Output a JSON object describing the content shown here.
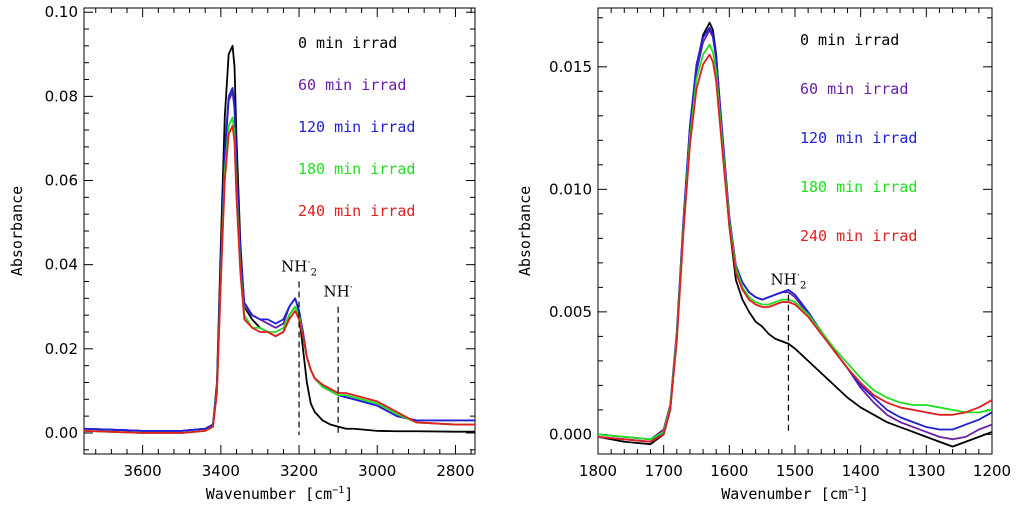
{
  "chart_data": [
    {
      "type": "line",
      "title": "",
      "xlabel": "Wavenumber [cm",
      "xlabel_sup": "−1",
      "xlabel_suffix": "]",
      "ylabel": "Absorbance",
      "xlim": [
        3750,
        2750
      ],
      "ylim": [
        -0.005,
        0.101
      ],
      "x_reversed": true,
      "grid": false,
      "legend_position": "top-right",
      "x_ticks": [
        {
          "value": 3600,
          "label": "3600"
        },
        {
          "value": 3400,
          "label": "3400"
        },
        {
          "value": 3200,
          "label": "3200"
        },
        {
          "value": 3000,
          "label": "3000"
        },
        {
          "value": 2800,
          "label": "2800"
        }
      ],
      "y_ticks": [
        {
          "value": 0.0,
          "label": "0.00"
        },
        {
          "value": 0.02,
          "label": "0.02"
        },
        {
          "value": 0.04,
          "label": "0.04"
        },
        {
          "value": 0.06,
          "label": "0.06"
        },
        {
          "value": 0.08,
          "label": "0.08"
        },
        {
          "value": 0.1,
          "label": "0.10"
        }
      ],
      "series": [
        {
          "name": "0 min irrad",
          "color": "#000000",
          "x": [
            3750,
            3600,
            3500,
            3440,
            3420,
            3410,
            3400,
            3390,
            3380,
            3370,
            3365,
            3360,
            3350,
            3340,
            3320,
            3300,
            3280,
            3260,
            3240,
            3225,
            3210,
            3200,
            3190,
            3180,
            3170,
            3160,
            3140,
            3120,
            3100,
            3080,
            3060,
            3000,
            2950,
            2900,
            2800,
            2750
          ],
          "values": [
            0.001,
            0.0005,
            0.0005,
            0.001,
            0.002,
            0.012,
            0.045,
            0.075,
            0.09,
            0.092,
            0.087,
            0.07,
            0.045,
            0.03,
            0.027,
            0.025,
            0.024,
            0.023,
            0.024,
            0.028,
            0.03,
            0.028,
            0.02,
            0.012,
            0.007,
            0.005,
            0.003,
            0.002,
            0.0015,
            0.001,
            0.001,
            0.0005,
            0.0004,
            0.0004,
            0.0003,
            0.0003
          ]
        },
        {
          "name": "60 min irrad",
          "color": "#6a1fa8",
          "x": [
            3750,
            3600,
            3500,
            3440,
            3420,
            3410,
            3400,
            3390,
            3380,
            3370,
            3365,
            3360,
            3350,
            3340,
            3320,
            3300,
            3280,
            3260,
            3240,
            3225,
            3210,
            3200,
            3190,
            3180,
            3170,
            3160,
            3140,
            3120,
            3100,
            3080,
            3060,
            3000,
            2950,
            2900,
            2800,
            2750
          ],
          "values": [
            0.001,
            0.0005,
            0.0005,
            0.001,
            0.002,
            0.011,
            0.04,
            0.066,
            0.079,
            0.081,
            0.077,
            0.063,
            0.042,
            0.03,
            0.028,
            0.027,
            0.026,
            0.025,
            0.026,
            0.03,
            0.032,
            0.029,
            0.024,
            0.018,
            0.015,
            0.013,
            0.011,
            0.01,
            0.009,
            0.0085,
            0.008,
            0.0065,
            0.004,
            0.003,
            0.003,
            0.003
          ]
        },
        {
          "name": "120 min irrad",
          "color": "#1f1fd8",
          "x": [
            3750,
            3600,
            3500,
            3440,
            3420,
            3410,
            3400,
            3390,
            3380,
            3370,
            3365,
            3360,
            3350,
            3340,
            3320,
            3300,
            3280,
            3260,
            3240,
            3225,
            3210,
            3200,
            3190,
            3180,
            3170,
            3160,
            3140,
            3120,
            3100,
            3080,
            3060,
            3000,
            2950,
            2900,
            2800,
            2750
          ],
          "values": [
            0.001,
            0.0005,
            0.0005,
            0.001,
            0.002,
            0.011,
            0.04,
            0.067,
            0.08,
            0.082,
            0.078,
            0.064,
            0.043,
            0.031,
            0.028,
            0.027,
            0.027,
            0.026,
            0.027,
            0.03,
            0.032,
            0.029,
            0.024,
            0.018,
            0.015,
            0.013,
            0.011,
            0.01,
            0.009,
            0.0085,
            0.008,
            0.0065,
            0.004,
            0.003,
            0.003,
            0.003
          ]
        },
        {
          "name": "180 min irrad",
          "color": "#1fe01f",
          "x": [
            3750,
            3600,
            3500,
            3440,
            3420,
            3410,
            3400,
            3390,
            3380,
            3370,
            3365,
            3360,
            3350,
            3340,
            3320,
            3300,
            3280,
            3260,
            3240,
            3225,
            3210,
            3200,
            3190,
            3180,
            3170,
            3160,
            3140,
            3120,
            3100,
            3080,
            3060,
            3000,
            2950,
            2900,
            2800,
            2750
          ],
          "values": [
            0.0005,
            0.0,
            0.0,
            0.0005,
            0.0015,
            0.01,
            0.037,
            0.062,
            0.073,
            0.075,
            0.071,
            0.058,
            0.039,
            0.028,
            0.025,
            0.025,
            0.024,
            0.024,
            0.025,
            0.028,
            0.03,
            0.028,
            0.023,
            0.018,
            0.015,
            0.013,
            0.011,
            0.01,
            0.009,
            0.009,
            0.0085,
            0.007,
            0.0045,
            0.0025,
            0.002,
            0.002
          ]
        },
        {
          "name": "240 min irrad",
          "color": "#e01f1f",
          "x": [
            3750,
            3600,
            3500,
            3440,
            3420,
            3410,
            3400,
            3390,
            3380,
            3370,
            3365,
            3360,
            3350,
            3340,
            3320,
            3300,
            3280,
            3260,
            3240,
            3225,
            3210,
            3200,
            3190,
            3180,
            3170,
            3160,
            3140,
            3120,
            3100,
            3080,
            3060,
            3000,
            2950,
            2900,
            2800,
            2750
          ],
          "values": [
            0.0005,
            0.0,
            0.0,
            0.0005,
            0.0015,
            0.0095,
            0.036,
            0.06,
            0.071,
            0.073,
            0.069,
            0.056,
            0.038,
            0.027,
            0.025,
            0.024,
            0.024,
            0.023,
            0.024,
            0.027,
            0.029,
            0.027,
            0.023,
            0.018,
            0.015,
            0.013,
            0.0115,
            0.0105,
            0.0095,
            0.0095,
            0.009,
            0.0075,
            0.005,
            0.0025,
            0.002,
            0.002
          ]
        }
      ],
      "annotations": [
        {
          "text": "NH",
          "sub": "2",
          "sup": "·",
          "x": 3200,
          "line_from": 0.036,
          "line_to": -0.0005
        },
        {
          "text": "NH",
          "sub": "",
          "sup": "·",
          "x": 3100,
          "line_from": 0.03,
          "line_to": -0.0005
        }
      ]
    },
    {
      "type": "line",
      "title": "",
      "xlabel": "Wavenumber [cm",
      "xlabel_sup": "−1",
      "xlabel_suffix": "]",
      "ylabel": "Absorbance",
      "xlim": [
        1800,
        1200
      ],
      "ylim": [
        -0.0008,
        0.0174
      ],
      "x_reversed": true,
      "grid": false,
      "legend_position": "top-right",
      "x_ticks": [
        {
          "value": 1800,
          "label": "1800"
        },
        {
          "value": 1700,
          "label": "1700"
        },
        {
          "value": 1600,
          "label": "1600"
        },
        {
          "value": 1500,
          "label": "1500"
        },
        {
          "value": 1400,
          "label": "1400"
        },
        {
          "value": 1300,
          "label": "1300"
        },
        {
          "value": 1200,
          "label": "1200"
        }
      ],
      "y_ticks": [
        {
          "value": 0.0,
          "label": "0.000"
        },
        {
          "value": 0.005,
          "label": "0.005"
        },
        {
          "value": 0.01,
          "label": "0.010"
        },
        {
          "value": 0.015,
          "label": "0.015"
        }
      ],
      "series": [
        {
          "name": "0 min irrad",
          "color": "#000000",
          "x": [
            1800,
            1760,
            1720,
            1700,
            1690,
            1680,
            1670,
            1660,
            1650,
            1640,
            1630,
            1625,
            1620,
            1610,
            1600,
            1590,
            1580,
            1570,
            1560,
            1550,
            1540,
            1530,
            1520,
            1510,
            1500,
            1480,
            1460,
            1440,
            1420,
            1400,
            1380,
            1360,
            1340,
            1320,
            1300,
            1280,
            1260,
            1240,
            1220,
            1200
          ],
          "values": [
            -0.0001,
            -0.0003,
            -0.0004,
            0.0,
            0.001,
            0.004,
            0.0085,
            0.0125,
            0.015,
            0.0163,
            0.0168,
            0.0165,
            0.0155,
            0.0118,
            0.0085,
            0.0063,
            0.0055,
            0.005,
            0.0046,
            0.0044,
            0.0041,
            0.0039,
            0.0038,
            0.0037,
            0.0035,
            0.003,
            0.0025,
            0.002,
            0.0015,
            0.0011,
            0.0008,
            0.0005,
            0.0003,
            0.0001,
            -0.0001,
            -0.0003,
            -0.0005,
            -0.0003,
            -0.0001,
            0.0001
          ]
        },
        {
          "name": "60 min irrad",
          "color": "#6a1fa8",
          "x": [
            1800,
            1760,
            1720,
            1700,
            1690,
            1680,
            1670,
            1660,
            1650,
            1640,
            1630,
            1625,
            1620,
            1610,
            1600,
            1590,
            1580,
            1570,
            1560,
            1550,
            1540,
            1530,
            1520,
            1510,
            1500,
            1480,
            1460,
            1440,
            1420,
            1400,
            1380,
            1360,
            1340,
            1320,
            1300,
            1280,
            1260,
            1240,
            1220,
            1200
          ],
          "values": [
            0.0,
            -0.0001,
            -0.0002,
            0.0002,
            0.0012,
            0.0042,
            0.0087,
            0.0125,
            0.0148,
            0.016,
            0.0165,
            0.0162,
            0.0153,
            0.012,
            0.0088,
            0.0068,
            0.0062,
            0.0058,
            0.0056,
            0.0055,
            0.0056,
            0.0057,
            0.0058,
            0.0058,
            0.0056,
            0.0049,
            0.0042,
            0.0034,
            0.0027,
            0.0019,
            0.0013,
            0.0008,
            0.0005,
            0.0003,
            0.0001,
            -0.0001,
            -0.0002,
            -0.0001,
            0.0002,
            0.0004
          ]
        },
        {
          "name": "120 min irrad",
          "color": "#1f1fd8",
          "x": [
            1800,
            1760,
            1720,
            1700,
            1690,
            1680,
            1670,
            1660,
            1650,
            1640,
            1630,
            1625,
            1620,
            1610,
            1600,
            1590,
            1580,
            1570,
            1560,
            1550,
            1540,
            1530,
            1520,
            1510,
            1500,
            1480,
            1460,
            1440,
            1420,
            1400,
            1380,
            1360,
            1340,
            1320,
            1300,
            1280,
            1260,
            1240,
            1220,
            1200
          ],
          "values": [
            -0.0001,
            -0.0002,
            -0.0003,
            0.0001,
            0.0011,
            0.0041,
            0.0087,
            0.0126,
            0.0151,
            0.0162,
            0.0166,
            0.0163,
            0.0154,
            0.0121,
            0.0089,
            0.0069,
            0.0062,
            0.0058,
            0.0056,
            0.0055,
            0.0056,
            0.0057,
            0.0058,
            0.0059,
            0.0057,
            0.005,
            0.0042,
            0.0034,
            0.0027,
            0.002,
            0.0015,
            0.001,
            0.0007,
            0.0005,
            0.0003,
            0.0002,
            0.0002,
            0.0004,
            0.0006,
            0.0009
          ]
        },
        {
          "name": "180 min irrad",
          "color": "#1fe01f",
          "x": [
            1800,
            1760,
            1720,
            1700,
            1690,
            1680,
            1670,
            1660,
            1650,
            1640,
            1630,
            1625,
            1620,
            1610,
            1600,
            1590,
            1580,
            1570,
            1560,
            1550,
            1540,
            1530,
            1520,
            1510,
            1500,
            1480,
            1460,
            1440,
            1420,
            1400,
            1380,
            1360,
            1340,
            1320,
            1300,
            1280,
            1260,
            1240,
            1220,
            1200
          ],
          "values": [
            0.0,
            -0.0001,
            -0.0002,
            0.0001,
            0.0011,
            0.004,
            0.0084,
            0.0121,
            0.0145,
            0.0155,
            0.0159,
            0.0156,
            0.0148,
            0.0117,
            0.0087,
            0.0068,
            0.006,
            0.0056,
            0.0054,
            0.0053,
            0.0053,
            0.0054,
            0.0055,
            0.0055,
            0.0054,
            0.0049,
            0.0042,
            0.0035,
            0.0029,
            0.0023,
            0.0018,
            0.0015,
            0.0013,
            0.0012,
            0.0012,
            0.0011,
            0.001,
            0.0009,
            0.0009,
            0.001
          ]
        },
        {
          "name": "240 min irrad",
          "color": "#e01f1f",
          "x": [
            1800,
            1760,
            1720,
            1700,
            1690,
            1680,
            1670,
            1660,
            1650,
            1640,
            1630,
            1625,
            1620,
            1610,
            1600,
            1590,
            1580,
            1570,
            1560,
            1550,
            1540,
            1530,
            1520,
            1510,
            1500,
            1480,
            1460,
            1440,
            1420,
            1400,
            1380,
            1360,
            1340,
            1320,
            1300,
            1280,
            1260,
            1240,
            1220,
            1200
          ],
          "values": [
            -0.0001,
            -0.0002,
            -0.0003,
            0.0,
            0.001,
            0.0038,
            0.0082,
            0.0118,
            0.0141,
            0.0151,
            0.0155,
            0.0152,
            0.0144,
            0.0114,
            0.0085,
            0.0066,
            0.0059,
            0.0055,
            0.0053,
            0.0052,
            0.0052,
            0.0053,
            0.0054,
            0.0054,
            0.0053,
            0.0048,
            0.0041,
            0.0034,
            0.0027,
            0.0021,
            0.0016,
            0.0013,
            0.0011,
            0.001,
            0.0009,
            0.0008,
            0.0008,
            0.0009,
            0.0011,
            0.0014
          ]
        }
      ],
      "annotations": [
        {
          "text": "NH",
          "sub": "2",
          "sup": "·",
          "x": 1510,
          "line_from": 0.0057,
          "line_to": 0.0
        }
      ]
    }
  ]
}
